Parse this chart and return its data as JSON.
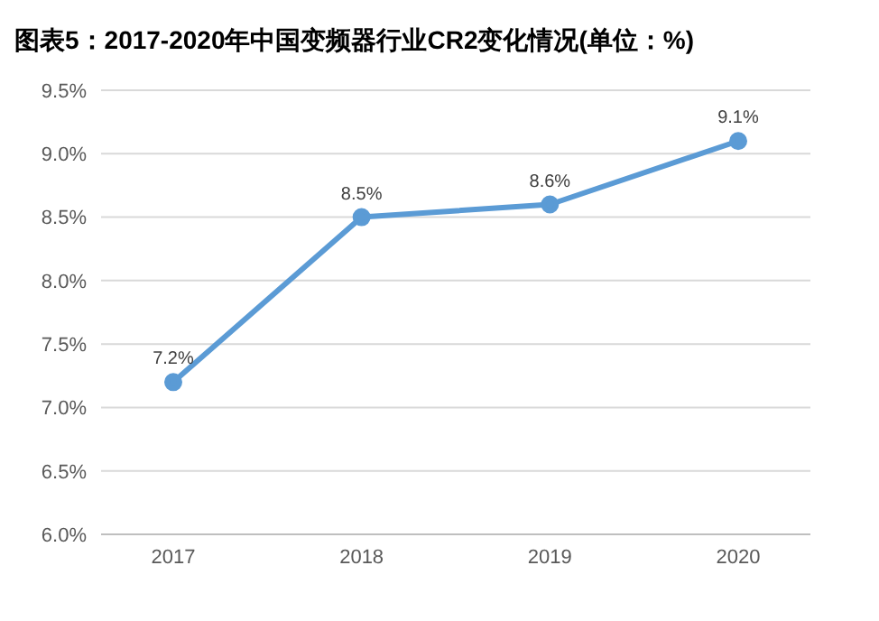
{
  "chart_data": {
    "type": "line",
    "title": "图表5：2017-2020年中国变频器行业CR2变化情况(单位：%)",
    "categories": [
      "2017",
      "2018",
      "2019",
      "2020"
    ],
    "series": [
      {
        "color": "#5b9bd5",
        "values": [
          7.2,
          8.5,
          8.6,
          9.1
        ],
        "value_labels": [
          "7.2%",
          "8.5%",
          "8.6%",
          "9.1%"
        ]
      }
    ],
    "ylim": [
      6.0,
      9.5
    ],
    "yticks": [
      {
        "value": 6.0,
        "label": "6.0%"
      },
      {
        "value": 6.5,
        "label": "6.5%"
      },
      {
        "value": 7.0,
        "label": "7.0%"
      },
      {
        "value": 7.5,
        "label": "7.5%"
      },
      {
        "value": 8.0,
        "label": "8.0%"
      },
      {
        "value": 8.5,
        "label": "8.5%"
      },
      {
        "value": 9.0,
        "label": "9.0%"
      },
      {
        "value": 9.5,
        "label": "9.5%"
      }
    ],
    "grid": "y",
    "marker": "circle",
    "line_style": "solid",
    "legend": false
  }
}
